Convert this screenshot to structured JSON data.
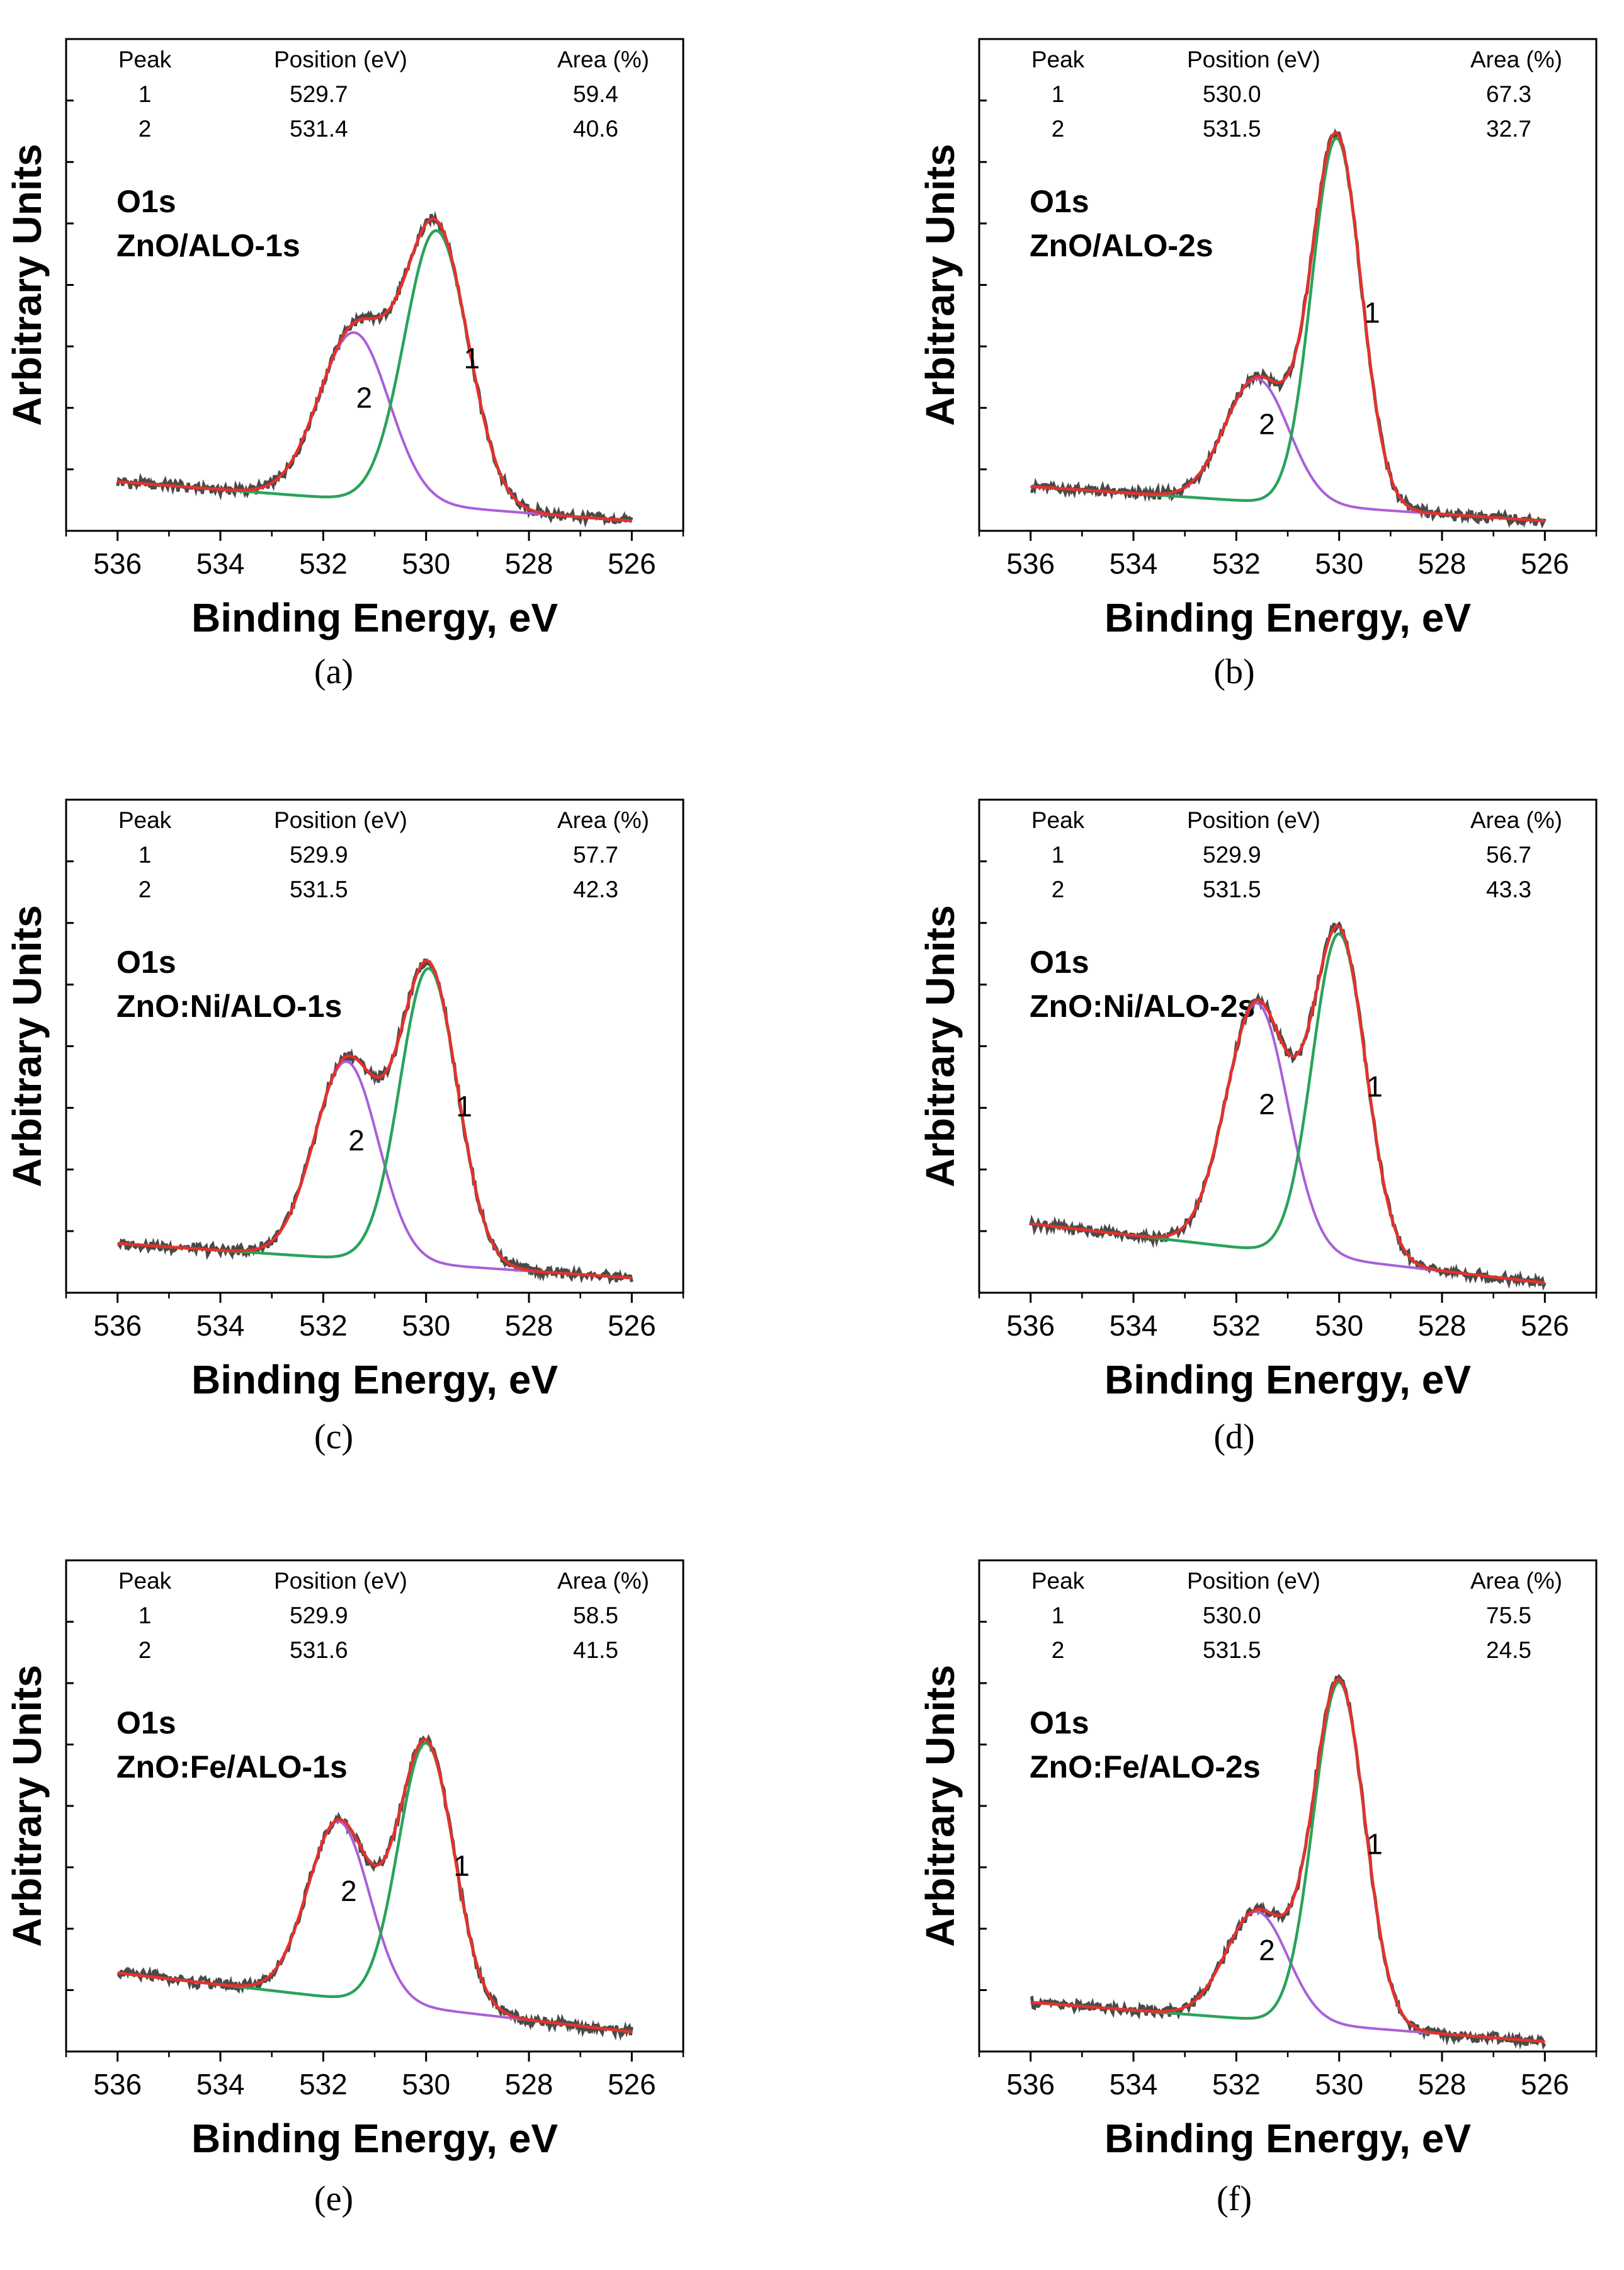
{
  "colors": {
    "data": "#4a4a4a",
    "fit": "#e8302a",
    "peak1": "#2aa35a",
    "peak2": "#a95fd8",
    "axis": "#000000"
  },
  "chart_data": [
    {
      "id": "a",
      "type": "line",
      "caption": "(a)",
      "title": "O1s",
      "sample": "ZnO/ALO-1s",
      "xlabel": "Binding Energy, eV",
      "ylabel": "Arbitrary Units",
      "xlim": [
        537,
        525
      ],
      "xticks": [
        536,
        534,
        532,
        530,
        528,
        526
      ],
      "table": {
        "headers": [
          "Peak",
          "Position (eV)",
          "Area  (%)"
        ],
        "rows": [
          [
            "1",
            "529.7",
            "59.4"
          ],
          [
            "2",
            "531.4",
            "40.6"
          ]
        ]
      },
      "baseline": [
        0.1,
        0.02
      ],
      "series": [
        {
          "name": "peak 1",
          "center": 529.8,
          "height": 0.56,
          "sigma": 0.62
        },
        {
          "name": "peak 2",
          "center": 531.4,
          "height": 0.34,
          "sigma": 0.68
        }
      ],
      "peak_labels": [
        "1",
        "2"
      ]
    },
    {
      "id": "b",
      "type": "line",
      "caption": "(b)",
      "title": "O1s",
      "sample": "ZnO/ALO-2s",
      "xlabel": "Binding Energy, eV",
      "ylabel": "Arbitrary Units",
      "xlim": [
        537,
        525
      ],
      "xticks": [
        536,
        534,
        532,
        530,
        528,
        526
      ],
      "table": {
        "headers": [
          "Peak",
          "Position (eV)",
          "Area  (%)"
        ],
        "rows": [
          [
            "1",
            "530.0",
            "67.3"
          ],
          [
            "2",
            "531.5",
            "32.7"
          ]
        ]
      },
      "baseline": [
        0.09,
        0.02
      ],
      "series": [
        {
          "name": "peak 1",
          "center": 530.05,
          "height": 0.75,
          "sigma": 0.48
        },
        {
          "name": "peak 2",
          "center": 531.6,
          "height": 0.25,
          "sigma": 0.62
        }
      ],
      "peak_labels": [
        "1",
        "2"
      ]
    },
    {
      "id": "c",
      "type": "line",
      "caption": "(c)",
      "title": "O1s",
      "sample": "ZnO:Ni/ALO-1s",
      "xlabel": "Binding Energy, eV",
      "ylabel": "Arbitrary Units",
      "xlim": [
        537,
        525
      ],
      "xticks": [
        536,
        534,
        532,
        530,
        528,
        526
      ],
      "table": {
        "headers": [
          "Peak",
          "Position (eV)",
          "Area  (%)"
        ],
        "rows": [
          [
            "1",
            "529.9",
            "57.7"
          ],
          [
            "2",
            "531.5",
            "42.3"
          ]
        ]
      },
      "baseline": [
        0.1,
        0.03
      ],
      "series": [
        {
          "name": "peak 1",
          "center": 529.95,
          "height": 0.6,
          "sigma": 0.56
        },
        {
          "name": "peak 2",
          "center": 531.55,
          "height": 0.4,
          "sigma": 0.62
        }
      ],
      "peak_labels": [
        "1",
        "2"
      ]
    },
    {
      "id": "d",
      "type": "line",
      "caption": "(d)",
      "title": "O1s",
      "sample": "ZnO:Ni/ALO-2s",
      "xlabel": "Binding Energy, eV",
      "ylabel": "Arbitrary Units",
      "xlim": [
        537,
        525
      ],
      "xticks": [
        536,
        534,
        532,
        530,
        528,
        526
      ],
      "table": {
        "headers": [
          "Peak",
          "Position (eV)",
          "Area  (%)"
        ],
        "rows": [
          [
            "1",
            "529.9",
            "56.7"
          ],
          [
            "2",
            "531.5",
            "43.3"
          ]
        ]
      },
      "baseline": [
        0.14,
        0.02
      ],
      "series": [
        {
          "name": "peak 1",
          "center": 530.0,
          "height": 0.66,
          "sigma": 0.52
        },
        {
          "name": "peak 2",
          "center": 531.6,
          "height": 0.5,
          "sigma": 0.6
        }
      ],
      "peak_labels": [
        "1",
        "2"
      ]
    },
    {
      "id": "e",
      "type": "line",
      "caption": "(e)",
      "title": "O1s",
      "sample": "ZnO:Fe/ALO-1s",
      "xlabel": "Binding Energy, eV",
      "ylabel": "Arbitrary Units",
      "xlim": [
        537,
        525
      ],
      "xticks": [
        536,
        534,
        532,
        530,
        528,
        526
      ],
      "table": {
        "headers": [
          "Peak",
          "Position (eV)",
          "Area  (%)"
        ],
        "rows": [
          [
            "1",
            "529.9",
            "58.5"
          ],
          [
            "2",
            "531.6",
            "41.5"
          ]
        ]
      },
      "baseline": [
        0.16,
        0.04
      ],
      "series": [
        {
          "name": "peak 1",
          "center": 530.0,
          "height": 0.54,
          "sigma": 0.54
        },
        {
          "name": "peak 2",
          "center": 531.7,
          "height": 0.36,
          "sigma": 0.6
        }
      ],
      "peak_labels": [
        "1",
        "2"
      ]
    },
    {
      "id": "f",
      "type": "line",
      "caption": "(f)",
      "title": "O1s",
      "sample": "ZnO:Fe/ALO-2s",
      "xlabel": "Binding Energy, eV",
      "ylabel": "Arbitrary Units",
      "xlim": [
        537,
        525
      ],
      "xticks": [
        536,
        534,
        532,
        530,
        528,
        526
      ],
      "table": {
        "headers": [
          "Peak",
          "Position (eV)",
          "Area  (%)"
        ],
        "rows": [
          [
            "1",
            "530.0",
            "75.5"
          ],
          [
            "2",
            "531.5",
            "24.5"
          ]
        ]
      },
      "baseline": [
        0.1,
        0.02
      ],
      "series": [
        {
          "name": "peak 1",
          "center": 530.0,
          "height": 0.7,
          "sigma": 0.5
        },
        {
          "name": "peak 2",
          "center": 531.6,
          "height": 0.22,
          "sigma": 0.6
        }
      ],
      "peak_labels": [
        "1",
        "2"
      ]
    }
  ]
}
